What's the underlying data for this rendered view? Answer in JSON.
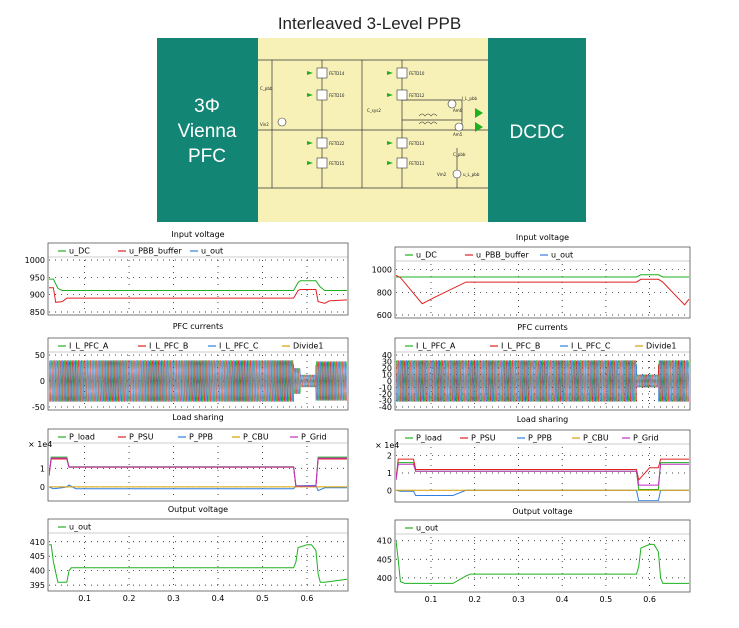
{
  "figure_title": "Interleaved 3-Level PPB",
  "schematic": {
    "left_block": [
      "3Φ",
      "Vienna",
      "PFC"
    ],
    "right_block": "DCDC",
    "block_color": "#138574",
    "middle_color": "#f7f1b8",
    "labels": [
      "Vin2",
      "C_pbb",
      "FETD10",
      "FETD12",
      "FETD13",
      "FETD11",
      "FETD14",
      "FETD16",
      "FETD22",
      "FETD15",
      "C_sys2",
      "I_L_pbb",
      "Am5",
      "Am6",
      "C_pbb",
      "Vm2",
      "u_L_pbb"
    ]
  },
  "colors": {
    "green": "#1eb01e",
    "red": "#e02020",
    "blue": "#2e7fe0",
    "orange": "#d8a000",
    "magenta": "#c030c0"
  },
  "chart_data": [
    {
      "type": "line",
      "title": "Input voltage",
      "legend": [
        "u_DC",
        "u_PBB_buffer",
        "u_out"
      ],
      "ylim": [
        850,
        1000
      ],
      "yticks": [
        "1000",
        "950",
        "900",
        "850"
      ],
      "xlim": [
        0.02,
        0.69
      ],
      "series": [
        {
          "name": "u_DC",
          "color": "#1eb01e",
          "x": [
            0.02,
            0.03,
            0.04,
            0.05,
            0.57,
            0.58,
            0.585,
            0.62,
            0.63,
            0.64,
            0.69
          ],
          "y": [
            945,
            945,
            918,
            912,
            912,
            935,
            940,
            940,
            922,
            912,
            912
          ]
        },
        {
          "name": "u_PBB_buffer",
          "color": "#e02020",
          "x": [
            0.02,
            0.03,
            0.035,
            0.05,
            0.06,
            0.57,
            0.58,
            0.585,
            0.62,
            0.625,
            0.64,
            0.65,
            0.69
          ],
          "y": [
            920,
            920,
            878,
            880,
            890,
            890,
            912,
            915,
            915,
            880,
            875,
            882,
            885
          ]
        }
      ]
    },
    {
      "type": "line",
      "title": "PFC currents",
      "legend": [
        "I_L_PFC_A",
        "I_L_PFC_B",
        "I_L_PFC_C",
        "Divide1"
      ],
      "ylim": [
        -50,
        50
      ],
      "yticks": [
        "50",
        "0",
        "-50"
      ],
      "xlim": [
        0.02,
        0.69
      ],
      "series": [
        {
          "name": "I_L_PFC_A",
          "color": "#1eb01e",
          "kind": "sine",
          "phase": 0,
          "amps": [
            [
              0.02,
              0.57,
              40
            ],
            [
              0.57,
              0.585,
              25
            ],
            [
              0.585,
              0.62,
              12
            ],
            [
              0.62,
              0.69,
              38
            ]
          ]
        },
        {
          "name": "I_L_PFC_B",
          "color": "#e02020",
          "kind": "sine",
          "phase": 2.094,
          "amps": [
            [
              0.02,
              0.57,
              40
            ],
            [
              0.57,
              0.585,
              25
            ],
            [
              0.585,
              0.62,
              12
            ],
            [
              0.62,
              0.69,
              38
            ]
          ]
        },
        {
          "name": "I_L_PFC_C",
          "color": "#2e7fe0",
          "kind": "sine",
          "phase": 4.189,
          "amps": [
            [
              0.02,
              0.57,
              40
            ],
            [
              0.57,
              0.585,
              25
            ],
            [
              0.585,
              0.62,
              12
            ],
            [
              0.62,
              0.69,
              38
            ]
          ]
        }
      ]
    },
    {
      "type": "line",
      "title": "Load sharing",
      "legend": [
        "P_load",
        "P_PSU",
        "P_PPB",
        "P_CBU",
        "P_Grid"
      ],
      "multiplier": "× 1e4",
      "ylim": [
        -0.6,
        2.2
      ],
      "yticks": [
        "1",
        "0"
      ],
      "xlim": [
        0.02,
        0.69
      ],
      "series": [
        {
          "name": "P_load",
          "color": "#1eb01e",
          "x": [
            0.02,
            0.025,
            0.03,
            0.06,
            0.065,
            0.57,
            0.575,
            0.62,
            0.625,
            0.69
          ],
          "y": [
            0.6,
            1.6,
            1.6,
            1.6,
            1.08,
            1.08,
            0.05,
            0.05,
            1.6,
            1.6
          ]
        },
        {
          "name": "P_PSU",
          "color": "#e02020",
          "x": [
            0.02,
            0.025,
            0.03,
            0.06,
            0.065,
            0.57,
            0.575,
            0.62,
            0.625,
            0.69
          ],
          "y": [
            0.6,
            1.5,
            1.5,
            1.5,
            1.06,
            1.06,
            0.02,
            0.02,
            1.5,
            1.5
          ]
        },
        {
          "name": "P_PPB",
          "color": "#2e7fe0",
          "x": [
            0.02,
            0.03,
            0.05,
            0.06,
            0.065,
            0.08,
            0.57,
            0.575,
            0.62,
            0.625,
            0.64,
            0.69
          ],
          "y": [
            0,
            -0.1,
            -0.05,
            0,
            0.1,
            -0.1,
            -0.1,
            0.05,
            0.08,
            -0.2,
            -0.05,
            -0.05
          ]
        },
        {
          "name": "P_CBU",
          "color": "#d8a000",
          "x": [
            0.02,
            0.69
          ],
          "y": [
            0,
            0
          ]
        },
        {
          "name": "P_Grid",
          "color": "#c030c0",
          "x": [
            0.02,
            0.025,
            0.03,
            0.06,
            0.065,
            0.57,
            0.575,
            0.62,
            0.625,
            0.69
          ],
          "y": [
            0.6,
            1.55,
            1.55,
            1.55,
            1.07,
            1.07,
            0.04,
            0.04,
            1.55,
            1.55
          ]
        }
      ]
    },
    {
      "type": "line",
      "title": "Output voltage",
      "legend": [
        "u_out"
      ],
      "ylim": [
        394,
        412
      ],
      "yticks": [
        "410",
        "405",
        "400",
        "395"
      ],
      "xlim": [
        0.02,
        0.69
      ],
      "xticks": [
        "0.1",
        "0.2",
        "0.3",
        "0.4",
        "0.5",
        "0.6"
      ],
      "series": [
        {
          "name": "u_out",
          "color": "#1eb01e",
          "x": [
            0.02,
            0.025,
            0.03,
            0.04,
            0.06,
            0.065,
            0.07,
            0.08,
            0.57,
            0.575,
            0.58,
            0.6,
            0.61,
            0.62,
            0.625,
            0.63,
            0.64,
            0.69
          ],
          "y": [
            409,
            409,
            403,
            396,
            396,
            400,
            401,
            401,
            401,
            403,
            408,
            409,
            409,
            407,
            399,
            396,
            396,
            397
          ]
        }
      ]
    },
    {
      "type": "line",
      "title": "Input voltage",
      "legend": [
        "u_DC",
        "u_PBB_buffer",
        "u_out"
      ],
      "ylim": [
        600,
        1050
      ],
      "yticks": [
        "1000",
        "800",
        "600"
      ],
      "xlim": [
        0.02,
        0.69
      ],
      "series": [
        {
          "name": "u_DC",
          "color": "#1eb01e",
          "x": [
            0.02,
            0.57,
            0.58,
            0.62,
            0.63,
            0.69
          ],
          "y": [
            935,
            935,
            955,
            955,
            935,
            935
          ]
        },
        {
          "name": "u_PBB_buffer",
          "color": "#e02020",
          "x": [
            0.02,
            0.03,
            0.08,
            0.11,
            0.18,
            0.57,
            0.58,
            0.62,
            0.63,
            0.68,
            0.69
          ],
          "y": [
            950,
            930,
            700,
            760,
            890,
            890,
            915,
            915,
            890,
            690,
            740
          ]
        }
      ]
    },
    {
      "type": "line",
      "title": "PFC currents",
      "legend": [
        "I_L_PFC_A",
        "I_L_PFC_B",
        "I_L_PFC_C",
        "Divide1"
      ],
      "ylim": [
        -40,
        40
      ],
      "yticks": [
        "40",
        "30",
        "20",
        "10",
        "0",
        "-10",
        "-20",
        "-30",
        "-40"
      ],
      "xlim": [
        0.02,
        0.69
      ],
      "series": [
        {
          "name": "I_L_PFC_A",
          "color": "#1eb01e",
          "kind": "sine",
          "phase": 0,
          "amps": [
            [
              0.02,
              0.57,
              32
            ],
            [
              0.57,
              0.62,
              10
            ],
            [
              0.62,
              0.69,
              32
            ]
          ]
        },
        {
          "name": "I_L_PFC_B",
          "color": "#e02020",
          "kind": "sine",
          "phase": 2.094,
          "amps": [
            [
              0.02,
              0.57,
              32
            ],
            [
              0.57,
              0.62,
              10
            ],
            [
              0.62,
              0.69,
              32
            ]
          ]
        },
        {
          "name": "I_L_PFC_C",
          "color": "#2e7fe0",
          "kind": "sine",
          "phase": 4.189,
          "amps": [
            [
              0.02,
              0.57,
              32
            ],
            [
              0.57,
              0.62,
              10
            ],
            [
              0.62,
              0.69,
              32
            ]
          ]
        }
      ]
    },
    {
      "type": "line",
      "title": "Load sharing",
      "legend": [
        "P_load",
        "P_PSU",
        "P_PPB",
        "P_CBU",
        "P_Grid"
      ],
      "multiplier": "× 1e4",
      "ylim": [
        -0.5,
        2.5
      ],
      "yticks": [
        "2",
        "1",
        "0"
      ],
      "xlim": [
        0.02,
        0.69
      ],
      "series": [
        {
          "name": "P_load",
          "color": "#1eb01e",
          "x": [
            0.02,
            0.025,
            0.03,
            0.06,
            0.065,
            0.57,
            0.575,
            0.62,
            0.625,
            0.69
          ],
          "y": [
            0.6,
            1.6,
            1.6,
            1.6,
            1.1,
            1.1,
            0.05,
            0.05,
            1.6,
            1.6
          ]
        },
        {
          "name": "P_PSU",
          "color": "#e02020",
          "x": [
            0.02,
            0.025,
            0.03,
            0.06,
            0.065,
            0.57,
            0.575,
            0.6,
            0.62,
            0.625,
            0.69
          ],
          "y": [
            0.6,
            1.8,
            1.8,
            1.8,
            1.2,
            1.2,
            0.6,
            1.3,
            1.3,
            1.8,
            1.8
          ]
        },
        {
          "name": "P_PPB",
          "color": "#2e7fe0",
          "x": [
            0.02,
            0.03,
            0.06,
            0.065,
            0.15,
            0.18,
            0.57,
            0.575,
            0.6,
            0.62,
            0.625,
            0.64,
            0.69
          ],
          "y": [
            0,
            -0.05,
            -0.05,
            -0.3,
            -0.3,
            0,
            0,
            -0.6,
            -0.6,
            -0.6,
            0,
            0,
            0
          ]
        },
        {
          "name": "P_CBU",
          "color": "#d8a000",
          "x": [
            0.02,
            0.69
          ],
          "y": [
            0,
            0
          ]
        },
        {
          "name": "P_Grid",
          "color": "#c030c0",
          "x": [
            0.02,
            0.025,
            0.03,
            0.06,
            0.065,
            0.57,
            0.575,
            0.62,
            0.625,
            0.69
          ],
          "y": [
            0.6,
            1.5,
            1.5,
            1.5,
            1.1,
            1.1,
            0.3,
            0.3,
            1.5,
            1.5
          ]
        }
      ]
    },
    {
      "type": "line",
      "title": "Output voltage",
      "legend": [
        "u_out"
      ],
      "ylim": [
        397,
        411
      ],
      "yticks": [
        "410",
        "405",
        "400"
      ],
      "xlim": [
        0.02,
        0.69
      ],
      "xticks": [
        "0.1",
        "0.2",
        "0.3",
        "0.4",
        "0.5",
        "0.6"
      ],
      "series": [
        {
          "name": "u_out",
          "color": "#1eb01e",
          "x": [
            0.02,
            0.025,
            0.03,
            0.04,
            0.15,
            0.18,
            0.19,
            0.57,
            0.575,
            0.58,
            0.6,
            0.61,
            0.62,
            0.625,
            0.63,
            0.69
          ],
          "y": [
            410,
            405,
            399,
            398.5,
            398.5,
            400.5,
            401,
            401,
            403,
            408,
            409,
            409,
            407,
            400,
            398.5,
            398.5
          ]
        }
      ]
    }
  ]
}
